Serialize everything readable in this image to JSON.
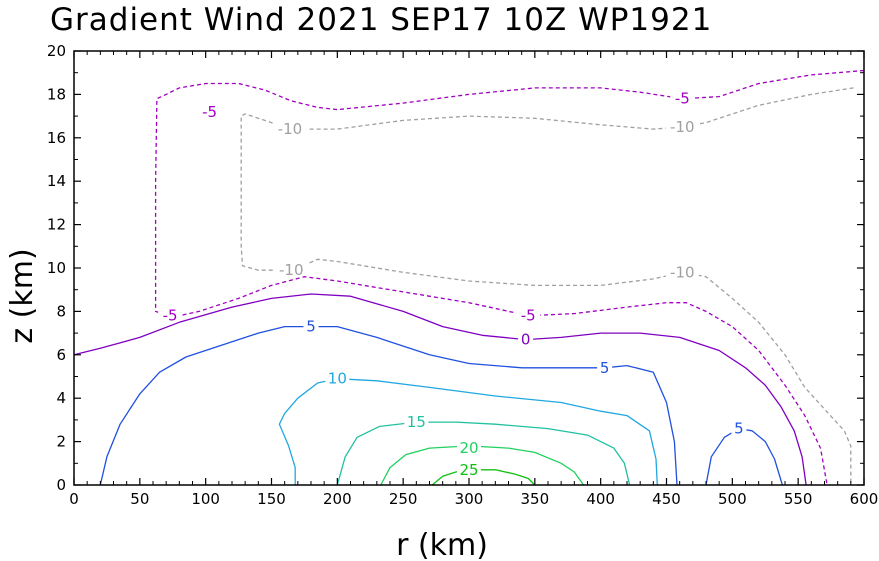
{
  "chart_data": {
    "type": "contour",
    "title": "Gradient Wind 2021 SEP17 10Z   WP1921",
    "xlabel": "r (km)",
    "ylabel": "z (km)",
    "xlim": [
      0,
      600
    ],
    "ylim": [
      0,
      20
    ],
    "xticks": [
      0,
      50,
      100,
      150,
      200,
      250,
      300,
      350,
      400,
      450,
      500,
      550,
      600
    ],
    "yticks": [
      0,
      2,
      4,
      6,
      8,
      10,
      12,
      14,
      16,
      18,
      20
    ],
    "grid": false,
    "contours": [
      {
        "level": -10,
        "color": "#a0a0a0",
        "dashed": true,
        "label_points": [
          [
            164,
            16.4
          ],
          [
            462,
            16.5
          ],
          [
            165,
            9.9
          ],
          [
            462,
            9.8
          ]
        ],
        "points": [
          [
            592,
            18.3
          ],
          [
            560,
            18.0
          ],
          [
            520,
            17.5
          ],
          [
            480,
            16.7
          ],
          [
            462,
            16.5
          ],
          [
            440,
            16.4
          ],
          [
            400,
            16.6
          ],
          [
            350,
            16.9
          ],
          [
            300,
            17.0
          ],
          [
            250,
            16.8
          ],
          [
            200,
            16.4
          ],
          [
            175,
            16.4
          ],
          [
            165,
            16.4
          ],
          [
            150,
            16.7
          ],
          [
            140,
            16.9
          ],
          [
            130,
            17.1
          ],
          [
            127,
            17.0
          ],
          [
            127,
            14.0
          ],
          [
            127,
            11.0
          ],
          [
            128,
            10.1
          ],
          [
            140,
            9.9
          ],
          [
            155,
            9.9
          ],
          [
            170,
            10.0
          ],
          [
            185,
            10.4
          ],
          [
            200,
            10.3
          ],
          [
            250,
            9.8
          ],
          [
            300,
            9.4
          ],
          [
            350,
            9.2
          ],
          [
            400,
            9.2
          ],
          [
            440,
            9.5
          ],
          [
            462,
            9.8
          ],
          [
            480,
            9.6
          ],
          [
            500,
            8.6
          ],
          [
            520,
            7.5
          ],
          [
            540,
            6.0
          ],
          [
            555,
            4.5
          ],
          [
            570,
            3.5
          ],
          [
            585,
            2.5
          ],
          [
            590,
            1.8
          ],
          [
            590,
            0
          ]
        ]
      },
      {
        "level": -5,
        "color": "#a000c0",
        "dashed": true,
        "label_points": [
          [
            103,
            17.2
          ],
          [
            462,
            17.8
          ],
          [
            73,
            7.8
          ],
          [
            345,
            7.8
          ]
        ],
        "points": [
          [
            600,
            19.1
          ],
          [
            560,
            18.9
          ],
          [
            520,
            18.5
          ],
          [
            490,
            17.9
          ],
          [
            462,
            17.8
          ],
          [
            430,
            18.1
          ],
          [
            400,
            18.3
          ],
          [
            350,
            18.3
          ],
          [
            300,
            18.0
          ],
          [
            250,
            17.6
          ],
          [
            200,
            17.3
          ],
          [
            185,
            17.4
          ],
          [
            165,
            17.7
          ],
          [
            145,
            18.2
          ],
          [
            125,
            18.5
          ],
          [
            100,
            18.5
          ],
          [
            80,
            18.3
          ],
          [
            70,
            18.0
          ],
          [
            63,
            17.8
          ],
          [
            62,
            14.0
          ],
          [
            62,
            10.0
          ],
          [
            62,
            8.0
          ],
          [
            67,
            7.9
          ],
          [
            80,
            7.8
          ],
          [
            95,
            8.0
          ],
          [
            110,
            8.3
          ],
          [
            125,
            8.6
          ],
          [
            150,
            9.2
          ],
          [
            175,
            9.6
          ],
          [
            200,
            9.4
          ],
          [
            250,
            8.9
          ],
          [
            300,
            8.4
          ],
          [
            345,
            7.8
          ],
          [
            380,
            7.9
          ],
          [
            420,
            8.2
          ],
          [
            450,
            8.4
          ],
          [
            465,
            8.4
          ],
          [
            480,
            8.0
          ],
          [
            500,
            7.3
          ],
          [
            520,
            6.2
          ],
          [
            540,
            4.6
          ],
          [
            555,
            3.2
          ],
          [
            567,
            1.7
          ],
          [
            572,
            0
          ]
        ]
      },
      {
        "level": 0,
        "color": "#8000c0",
        "dashed": false,
        "label_points": [
          [
            343,
            6.7
          ]
        ],
        "points": [
          [
            0,
            6.0
          ],
          [
            20,
            6.3
          ],
          [
            50,
            6.8
          ],
          [
            80,
            7.5
          ],
          [
            120,
            8.2
          ],
          [
            150,
            8.6
          ],
          [
            180,
            8.8
          ],
          [
            210,
            8.7
          ],
          [
            250,
            8.0
          ],
          [
            280,
            7.3
          ],
          [
            310,
            6.9
          ],
          [
            343,
            6.7
          ],
          [
            370,
            6.8
          ],
          [
            400,
            7.0
          ],
          [
            430,
            7.0
          ],
          [
            460,
            6.8
          ],
          [
            490,
            6.2
          ],
          [
            510,
            5.4
          ],
          [
            525,
            4.6
          ],
          [
            537,
            3.6
          ],
          [
            547,
            2.5
          ],
          [
            553,
            1.3
          ],
          [
            556,
            0
          ]
        ]
      },
      {
        "level": 5,
        "color": "#2050e0",
        "dashed": false,
        "label_points": [
          [
            180,
            7.3
          ],
          [
            403,
            5.4
          ],
          [
            505,
            2.6
          ]
        ],
        "points": [
          [
            20,
            0.0
          ],
          [
            25,
            1.3
          ],
          [
            35,
            2.8
          ],
          [
            50,
            4.2
          ],
          [
            65,
            5.2
          ],
          [
            85,
            5.9
          ],
          [
            110,
            6.4
          ],
          [
            140,
            7.0
          ],
          [
            160,
            7.3
          ],
          [
            200,
            7.3
          ],
          [
            230,
            6.8
          ],
          [
            270,
            6.0
          ],
          [
            300,
            5.6
          ],
          [
            340,
            5.4
          ],
          [
            380,
            5.4
          ],
          [
            403,
            5.4
          ],
          [
            420,
            5.5
          ],
          [
            440,
            5.2
          ],
          [
            450,
            3.8
          ],
          [
            456,
            2.0
          ],
          [
            458,
            0
          ]
        ],
        "points2": [
          [
            480,
            0
          ],
          [
            484,
            1.3
          ],
          [
            494,
            2.2
          ],
          [
            505,
            2.6
          ],
          [
            515,
            2.5
          ],
          [
            525,
            2.0
          ],
          [
            532,
            1.2
          ],
          [
            538,
            0
          ]
        ]
      },
      {
        "level": 10,
        "color": "#20a8e0",
        "dashed": false,
        "label_points": [
          [
            200,
            4.9
          ]
        ],
        "points": [
          [
            168,
            0
          ],
          [
            168,
            0.8
          ],
          [
            163,
            1.8
          ],
          [
            156,
            2.8
          ],
          [
            160,
            3.3
          ],
          [
            170,
            4.0
          ],
          [
            185,
            4.7
          ],
          [
            200,
            4.9
          ],
          [
            230,
            4.8
          ],
          [
            270,
            4.5
          ],
          [
            320,
            4.1
          ],
          [
            370,
            3.8
          ],
          [
            400,
            3.4
          ],
          [
            420,
            3.2
          ],
          [
            437,
            2.5
          ],
          [
            442,
            1.2
          ],
          [
            443,
            0
          ]
        ]
      },
      {
        "level": 15,
        "color": "#20c0a0",
        "dashed": false,
        "label_points": [
          [
            260,
            2.9
          ]
        ],
        "points": [
          [
            200,
            0
          ],
          [
            206,
            1.3
          ],
          [
            215,
            2.2
          ],
          [
            232,
            2.7
          ],
          [
            260,
            2.9
          ],
          [
            290,
            2.9
          ],
          [
            320,
            2.8
          ],
          [
            360,
            2.6
          ],
          [
            390,
            2.3
          ],
          [
            410,
            1.7
          ],
          [
            418,
            1.0
          ],
          [
            422,
            0
          ]
        ]
      },
      {
        "level": 20,
        "color": "#20d060",
        "dashed": false,
        "label_points": [
          [
            300,
            1.7
          ]
        ],
        "points": [
          [
            233,
            0
          ],
          [
            240,
            0.8
          ],
          [
            252,
            1.4
          ],
          [
            270,
            1.7
          ],
          [
            300,
            1.8
          ],
          [
            330,
            1.7
          ],
          [
            350,
            1.5
          ],
          [
            370,
            1.0
          ],
          [
            380,
            0.6
          ],
          [
            387,
            0
          ]
        ]
      },
      {
        "level": 25,
        "color": "#10c010",
        "dashed": false,
        "label_points": [
          [
            300,
            0.7
          ]
        ],
        "points": [
          [
            272,
            0
          ],
          [
            280,
            0.4
          ],
          [
            290,
            0.6
          ],
          [
            300,
            0.7
          ],
          [
            320,
            0.7
          ],
          [
            335,
            0.5
          ],
          [
            345,
            0.3
          ],
          [
            350,
            0
          ]
        ]
      }
    ]
  }
}
